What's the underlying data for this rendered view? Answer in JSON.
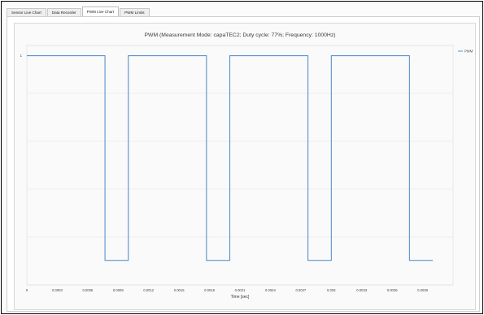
{
  "tabs": [
    {
      "label": "Sensor Live Chart",
      "active": false
    },
    {
      "label": "Data Recorder",
      "active": false
    },
    {
      "label": "PWM Live Chart",
      "active": true
    },
    {
      "label": "PWM Limits",
      "active": false
    }
  ],
  "chart_data": {
    "type": "line",
    "title": "PWM (Measurement Mode: capaTEC2; Duty cycle: 77%; Frequency: 1000Hz)",
    "xlabel": "Time [sec]",
    "ylabel": "",
    "xlim": [
      0,
      0.0042
    ],
    "ylim": [
      -0.12,
      1.05
    ],
    "x_ticks": [
      "0",
      "0.0003",
      "0.0006",
      "0.0009",
      "0.0012",
      "0.0015",
      "0.0018",
      "0.0021",
      "0.0024",
      "0.0027",
      "0.003",
      "0.0033",
      "0.0036",
      "0.0039"
    ],
    "y_ticks": [
      "1"
    ],
    "grid": true,
    "legend": "right",
    "series": [
      {
        "name": "PWM",
        "color": "#4a86c8",
        "step": true,
        "points": [
          [
            0,
            1
          ],
          [
            0.00077,
            1
          ],
          [
            0.00077,
            -0.0
          ],
          [
            0.001,
            -0.0
          ],
          [
            0.001,
            1
          ],
          [
            0.00177,
            1
          ],
          [
            0.00177,
            -0.0
          ],
          [
            0.002,
            -0.0
          ],
          [
            0.002,
            1
          ],
          [
            0.00277,
            1
          ],
          [
            0.00277,
            -0.0
          ],
          [
            0.003,
            -0.0
          ],
          [
            0.003,
            1
          ],
          [
            0.00377,
            1
          ],
          [
            0.00377,
            -0.0
          ],
          [
            0.004,
            -0.0
          ]
        ]
      }
    ]
  }
}
